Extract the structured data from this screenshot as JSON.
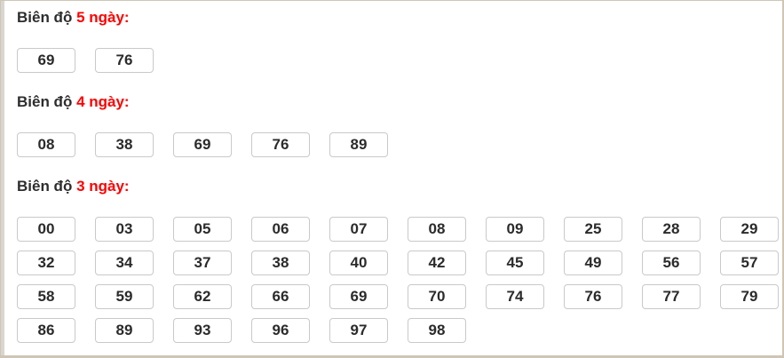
{
  "panel": {
    "sections": [
      {
        "title": {
          "prefix": "Biên độ",
          "highlight": "5 ngày:"
        },
        "numbers": [
          "69",
          "76"
        ]
      },
      {
        "title": {
          "prefix": "Biên độ",
          "highlight": "4 ngày:"
        },
        "numbers": [
          "08",
          "38",
          "69",
          "76",
          "89"
        ]
      },
      {
        "title": {
          "prefix": "Biên độ",
          "highlight": "3 ngày:"
        },
        "numbers": [
          "00",
          "03",
          "05",
          "06",
          "07",
          "08",
          "09",
          "25",
          "28",
          "29",
          "32",
          "34",
          "37",
          "38",
          "40",
          "42",
          "45",
          "49",
          "56",
          "57",
          "58",
          "59",
          "62",
          "66",
          "69",
          "70",
          "74",
          "76",
          "77",
          "79",
          "86",
          "89",
          "93",
          "96",
          "97",
          "98"
        ]
      }
    ],
    "colors": {
      "highlight_red": "#ff0000",
      "heading_text": "#2d2d2d",
      "number_text": "#2b2b2b",
      "box_border": "#c9c9c9",
      "panel_border": "#cec5b5",
      "gutter": "#d9d6d0",
      "background": "#ffffff"
    }
  }
}
